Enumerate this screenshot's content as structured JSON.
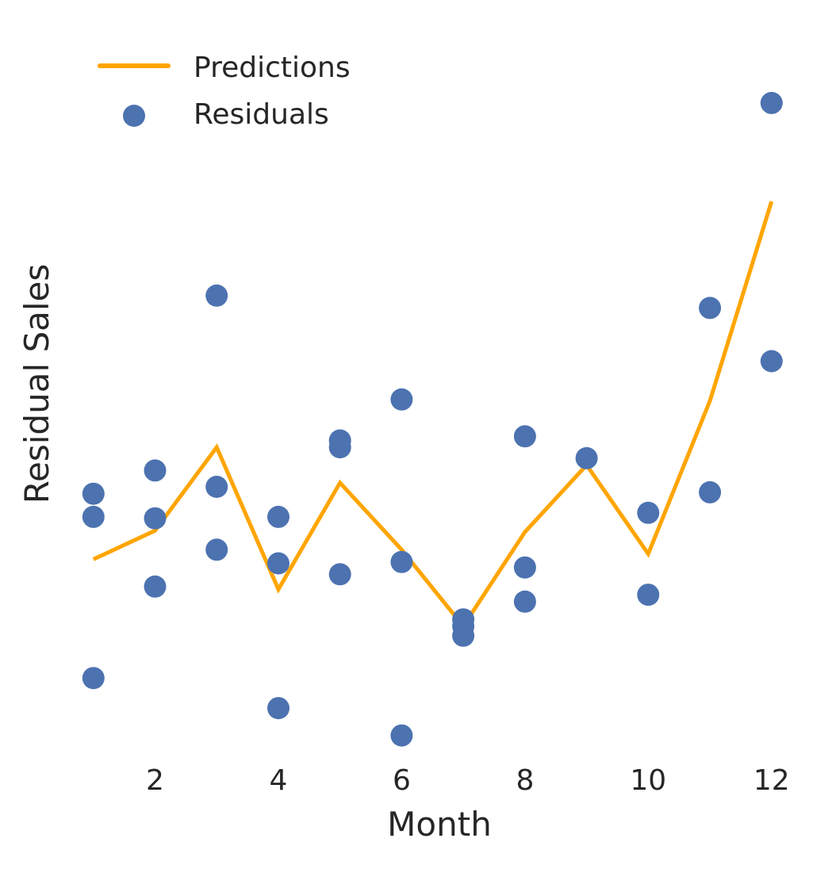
{
  "chart_data": {
    "type": "scatter",
    "xlabel": "Month",
    "ylabel": "Residual Sales",
    "xlim": [
      0.9,
      12.35
    ],
    "ylim": [
      -1.72,
      3.62
    ],
    "x_ticks": [
      2,
      4,
      6,
      8,
      10,
      12
    ],
    "y_ticks_shown": false,
    "grid": false,
    "legend": {
      "position": "top-left",
      "entries": [
        "Predictions",
        "Residuals"
      ]
    },
    "series": [
      {
        "name": "Predictions",
        "kind": "line",
        "color": "#FFA500",
        "x": [
          1,
          2,
          3,
          4,
          5,
          6,
          7,
          8,
          9,
          10,
          11,
          12
        ],
        "y": [
          -0.3,
          -0.09,
          0.52,
          -0.52,
          0.26,
          -0.23,
          -0.79,
          -0.1,
          0.39,
          -0.26,
          0.86,
          2.32
        ]
      },
      {
        "name": "Residuals",
        "kind": "scatter",
        "color": "#4C72B0",
        "points": [
          [
            1,
            0.18
          ],
          [
            1,
            0.01
          ],
          [
            1,
            -1.17
          ],
          [
            2,
            0.35
          ],
          [
            2,
            0.0
          ],
          [
            2,
            -0.5
          ],
          [
            3,
            1.63
          ],
          [
            3,
            0.23
          ],
          [
            3,
            -0.23
          ],
          [
            4,
            0.01
          ],
          [
            4,
            -0.33
          ],
          [
            4,
            -1.39
          ],
          [
            5,
            0.57
          ],
          [
            5,
            0.52
          ],
          [
            5,
            -0.41
          ],
          [
            6,
            0.87
          ],
          [
            6,
            -0.32
          ],
          [
            6,
            -1.59
          ],
          [
            7,
            -0.74
          ],
          [
            7,
            -0.79
          ],
          [
            7,
            -0.86
          ],
          [
            8,
            0.6
          ],
          [
            8,
            -0.36
          ],
          [
            8,
            -0.61
          ],
          [
            9,
            0.44
          ],
          [
            10,
            0.04
          ],
          [
            10,
            -0.56
          ],
          [
            11,
            1.54
          ],
          [
            11,
            0.19
          ],
          [
            12,
            3.04
          ],
          [
            12,
            1.15
          ]
        ]
      }
    ]
  }
}
